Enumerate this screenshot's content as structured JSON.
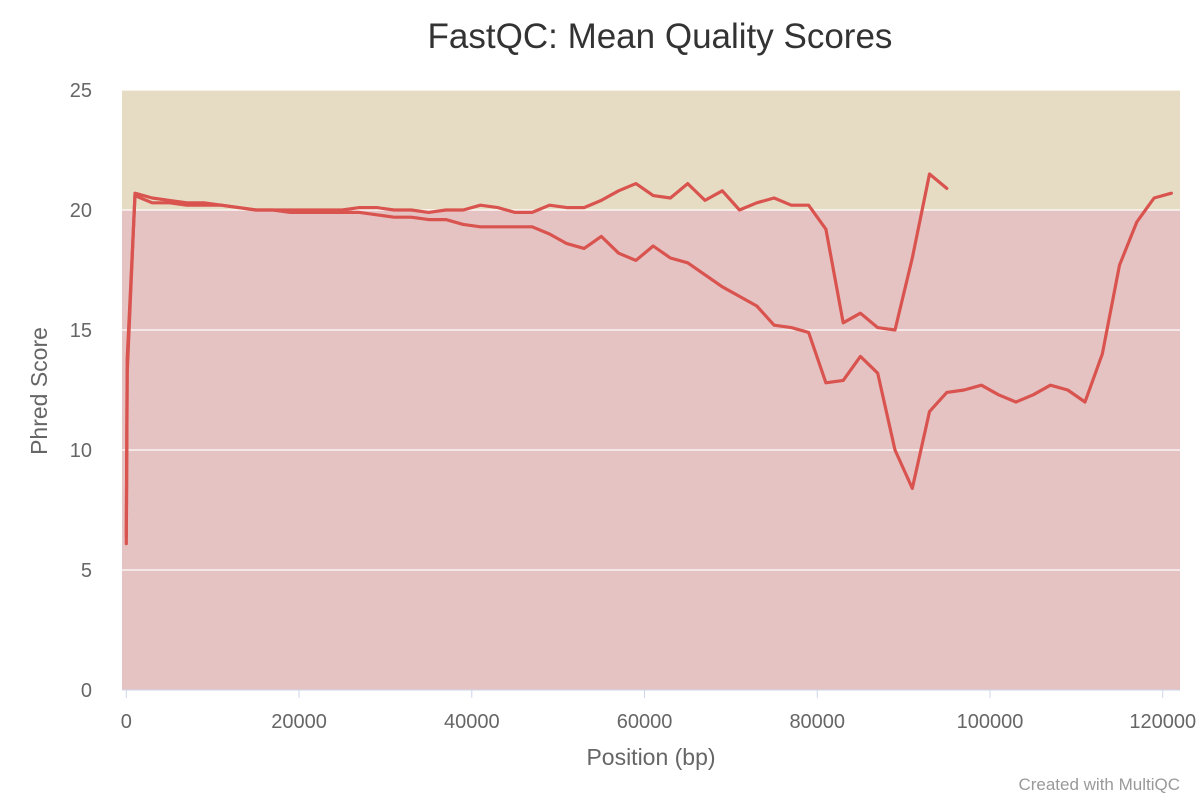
{
  "chart_data": {
    "type": "line",
    "title": "FastQC: Mean Quality Scores",
    "xlabel": "Position (bp)",
    "ylabel": "Phred Score",
    "xlim": [
      -500,
      122000
    ],
    "ylim": [
      0,
      25
    ],
    "xticks": [
      0,
      20000,
      40000,
      60000,
      80000,
      100000,
      120000
    ],
    "yticks": [
      0,
      5,
      10,
      15,
      20,
      25
    ],
    "grid": true,
    "bands": [
      {
        "from": 0,
        "to": 20,
        "color": "#e6c3c3"
      },
      {
        "from": 20,
        "to": 25,
        "color": "#e6dcc3"
      }
    ],
    "series": [
      {
        "color": "#d9534f",
        "points": [
          [
            1,
            6.1
          ],
          [
            100,
            13.8
          ],
          [
            1000,
            20.6
          ],
          [
            3000,
            20.3
          ],
          [
            5000,
            20.3
          ],
          [
            7000,
            20.2
          ],
          [
            9000,
            20.2
          ],
          [
            11000,
            20.2
          ],
          [
            13000,
            20.1
          ],
          [
            15000,
            20.0
          ],
          [
            17000,
            20.0
          ],
          [
            19000,
            19.9
          ],
          [
            21000,
            19.9
          ],
          [
            23000,
            19.9
          ],
          [
            25000,
            19.9
          ],
          [
            27000,
            19.9
          ],
          [
            29000,
            19.8
          ],
          [
            31000,
            19.7
          ],
          [
            33000,
            19.7
          ],
          [
            35000,
            19.6
          ],
          [
            37000,
            19.6
          ],
          [
            39000,
            19.4
          ],
          [
            41000,
            19.3
          ],
          [
            43000,
            19.3
          ],
          [
            45000,
            19.3
          ],
          [
            47000,
            19.3
          ],
          [
            49000,
            19.0
          ],
          [
            51000,
            18.6
          ],
          [
            53000,
            18.4
          ],
          [
            55000,
            18.9
          ],
          [
            57000,
            18.2
          ],
          [
            59000,
            17.9
          ],
          [
            61000,
            18.5
          ],
          [
            63000,
            18.0
          ],
          [
            65000,
            17.8
          ],
          [
            67000,
            17.3
          ],
          [
            69000,
            16.8
          ],
          [
            71000,
            16.4
          ],
          [
            73000,
            16.0
          ],
          [
            75000,
            15.2
          ],
          [
            77000,
            15.1
          ],
          [
            79000,
            14.9
          ],
          [
            81000,
            12.8
          ],
          [
            83000,
            12.9
          ],
          [
            85000,
            13.9
          ],
          [
            87000,
            13.2
          ],
          [
            89000,
            10.0
          ],
          [
            91000,
            8.4
          ],
          [
            93000,
            11.6
          ],
          [
            95000,
            12.4
          ],
          [
            97000,
            12.5
          ],
          [
            99000,
            12.7
          ],
          [
            101000,
            12.3
          ],
          [
            103000,
            12.0
          ],
          [
            105000,
            12.3
          ],
          [
            107000,
            12.7
          ],
          [
            109000,
            12.5
          ],
          [
            111000,
            12.0
          ],
          [
            113000,
            14.0
          ],
          [
            115000,
            17.7
          ],
          [
            117000,
            19.5
          ],
          [
            119000,
            20.5
          ],
          [
            121000,
            20.7
          ]
        ]
      },
      {
        "color": "#d9534f",
        "points": [
          [
            1,
            6.4
          ],
          [
            100,
            13.2
          ],
          [
            1000,
            20.7
          ],
          [
            3000,
            20.5
          ],
          [
            5000,
            20.4
          ],
          [
            7000,
            20.3
          ],
          [
            9000,
            20.3
          ],
          [
            11000,
            20.2
          ],
          [
            13000,
            20.1
          ],
          [
            15000,
            20.0
          ],
          [
            17000,
            20.0
          ],
          [
            19000,
            20.0
          ],
          [
            21000,
            20.0
          ],
          [
            23000,
            20.0
          ],
          [
            25000,
            20.0
          ],
          [
            27000,
            20.1
          ],
          [
            29000,
            20.1
          ],
          [
            31000,
            20.0
          ],
          [
            33000,
            20.0
          ],
          [
            35000,
            19.9
          ],
          [
            37000,
            20.0
          ],
          [
            39000,
            20.0
          ],
          [
            41000,
            20.2
          ],
          [
            43000,
            20.1
          ],
          [
            45000,
            19.9
          ],
          [
            47000,
            19.9
          ],
          [
            49000,
            20.2
          ],
          [
            51000,
            20.1
          ],
          [
            53000,
            20.1
          ],
          [
            55000,
            20.4
          ],
          [
            57000,
            20.8
          ],
          [
            59000,
            21.1
          ],
          [
            61000,
            20.6
          ],
          [
            63000,
            20.5
          ],
          [
            65000,
            21.1
          ],
          [
            67000,
            20.4
          ],
          [
            69000,
            20.8
          ],
          [
            71000,
            20.0
          ],
          [
            73000,
            20.3
          ],
          [
            75000,
            20.5
          ],
          [
            77000,
            20.2
          ],
          [
            79000,
            20.2
          ],
          [
            81000,
            19.2
          ],
          [
            83000,
            15.3
          ],
          [
            85000,
            15.7
          ],
          [
            87000,
            15.1
          ],
          [
            89000,
            15.0
          ],
          [
            91000,
            18.0
          ],
          [
            93000,
            21.5
          ],
          [
            95000,
            20.9
          ]
        ]
      }
    ],
    "credit": "Created with MultiQC"
  }
}
